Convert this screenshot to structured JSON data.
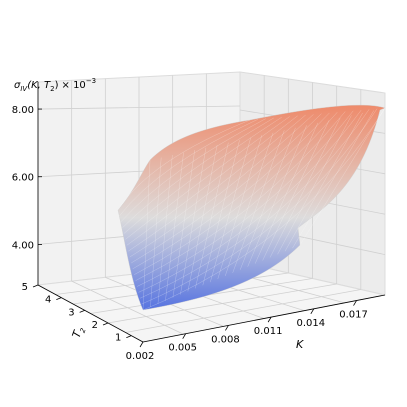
{
  "chart_data": {
    "type": "surface3d",
    "zlabel_main": "σ",
    "zlabel_sub": "IV",
    "zlabel_args": "(K, T",
    "zlabel_args_sub": "2",
    "zlabel_tail": ")",
    "zlabel_mult": "× 10",
    "zlabel_exp": "−3",
    "xlabel": "K",
    "ylabel_main": "T",
    "ylabel_sub": "2",
    "x_ticks": [
      "0.002",
      "0.005",
      "0.008",
      "0.011",
      "0.014",
      "0.017"
    ],
    "y_ticks": [
      "1",
      "2",
      "3",
      "4",
      "5"
    ],
    "z_ticks": [
      "4.00",
      "6.00",
      "8.00"
    ],
    "xlim": [
      0.002,
      0.019
    ],
    "ylim": [
      0.5,
      5.0
    ],
    "zlim": [
      2.8,
      8.8
    ],
    "colormap": [
      "#3b4cc0",
      "#dddddd",
      "#b40426"
    ],
    "grid": true
  }
}
